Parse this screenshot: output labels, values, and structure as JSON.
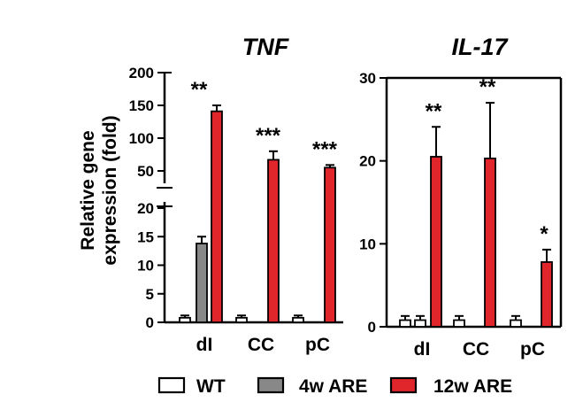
{
  "chart_data": [
    {
      "type": "bar",
      "title": "TNF",
      "ylabel": "Relative gene expression (fold)",
      "broken_axis": true,
      "ylim_lower": [
        0,
        20
      ],
      "ylim_upper": [
        50,
        200
      ],
      "yticks_lower": [
        "0",
        "5",
        "10",
        "15",
        "20"
      ],
      "yticks_upper": [
        "50",
        "100",
        "150",
        "200"
      ],
      "categories": [
        "dI",
        "CC",
        "pC"
      ],
      "series": [
        {
          "name": "WT",
          "values": [
            0.8,
            0.8,
            0.8
          ],
          "errors": [
            0.4,
            0.4,
            0.4
          ]
        },
        {
          "name": "4w ARE",
          "values": [
            13.8,
            null,
            null
          ],
          "errors": [
            1.2,
            null,
            null
          ]
        },
        {
          "name": "12w ARE",
          "values": [
            141,
            67,
            55
          ],
          "errors": [
            9,
            13,
            4
          ]
        }
      ],
      "significance": [
        "**",
        "***",
        "***"
      ]
    },
    {
      "type": "bar",
      "title": "IL-17",
      "ylim": [
        0,
        30
      ],
      "yticks": [
        "0",
        "10",
        "20",
        "30"
      ],
      "categories": [
        "dI",
        "CC",
        "pC"
      ],
      "series": [
        {
          "name": "WT",
          "values": [
            0.8,
            0.8,
            0.8
          ],
          "errors": [
            0.5,
            0.5,
            0.5
          ],
          "extra_values_dI": [
            0.8
          ]
        },
        {
          "name": "12w ARE",
          "values": [
            20.5,
            20.3,
            7.8
          ],
          "errors": [
            3.6,
            6.7,
            1.5
          ]
        }
      ],
      "significance": [
        "**",
        "**",
        "*"
      ]
    }
  ],
  "legend": [
    {
      "label": "WT",
      "color": "#ffffff"
    },
    {
      "label": "4w ARE",
      "color": "#888888"
    },
    {
      "label": "12w ARE",
      "color": "#e0262a"
    }
  ],
  "colors": {
    "wt": "#ffffff",
    "four_week": "#888888",
    "twelve_week": "#e0262a"
  }
}
